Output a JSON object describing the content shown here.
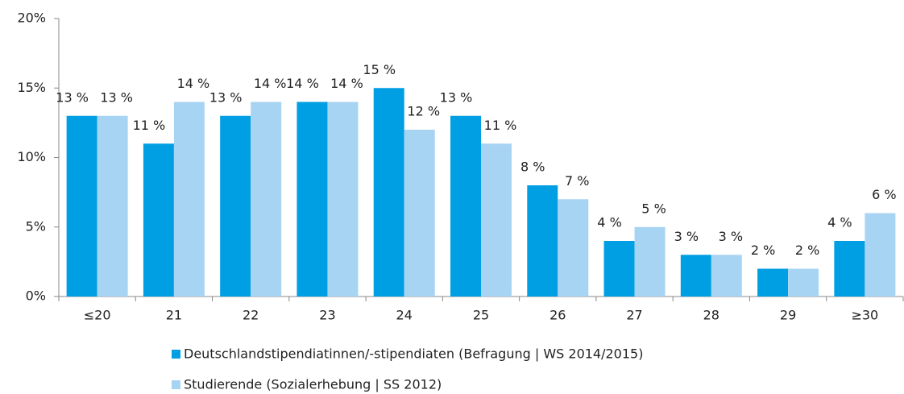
{
  "chart_data": {
    "type": "bar",
    "categories": [
      "≤20",
      "21",
      "22",
      "23",
      "24",
      "25",
      "26",
      "27",
      "28",
      "29",
      "≥30"
    ],
    "series": [
      {
        "name": "Deutschlandstipendiatinnen/-stipendiaten (Befragung | WS 2014/2015)",
        "color": "#009fe3",
        "values": [
          13,
          11,
          13,
          14,
          15,
          13,
          8,
          4,
          3,
          2,
          4
        ],
        "value_labels": [
          "13 %",
          "11 %",
          "13 %",
          "14 %",
          "15 %",
          "13 %",
          "8 %",
          "4 %",
          "3 %",
          "2 %",
          "4 %"
        ]
      },
      {
        "name": "Studierende (Sozialerhebung | SS 2012)",
        "color": "#a8d4f3",
        "values": [
          13,
          14,
          14,
          14,
          12,
          11,
          7,
          5,
          3,
          2,
          6
        ],
        "value_labels": [
          "13 %",
          "14 %",
          "14 %",
          "14 %",
          "12 %",
          "11 %",
          "7 %",
          "5 %",
          "3 %",
          "2 %",
          "6 %"
        ]
      }
    ],
    "ylim": [
      0,
      20
    ],
    "yticks": [
      {
        "value": 0,
        "label": "0%"
      },
      {
        "value": 5,
        "label": "5%"
      },
      {
        "value": 10,
        "label": "10%"
      },
      {
        "value": 15,
        "label": "15%"
      },
      {
        "value": 20,
        "label": "20%"
      }
    ],
    "grid": false,
    "legend": "bottom"
  }
}
